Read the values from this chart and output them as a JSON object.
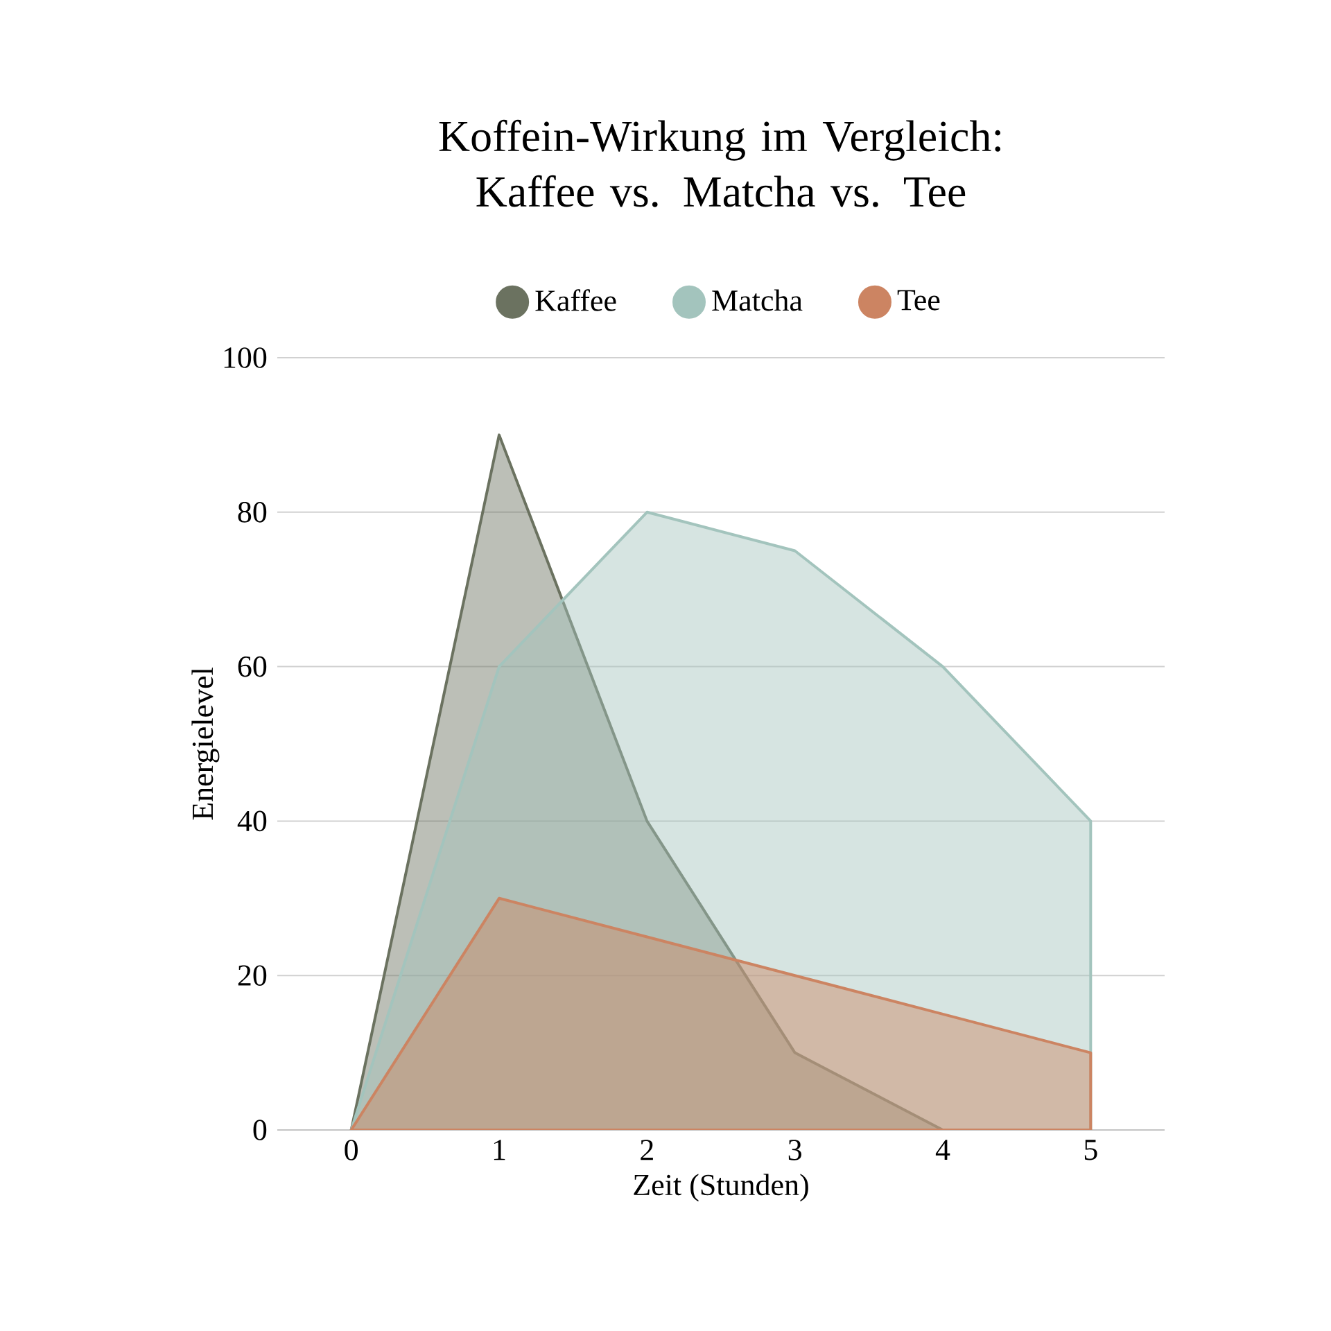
{
  "chart_data": {
    "type": "area",
    "title": "Koffein-Wirkung im Vergleich: Kaffee vs. Matcha vs. Tee",
    "xlabel": "Zeit (Stunden)",
    "ylabel": "Energielevel",
    "x": [
      0,
      1,
      2,
      3,
      4,
      5
    ],
    "series": [
      {
        "name": "Kaffee",
        "color": "#6b7260",
        "values": [
          0,
          90,
          40,
          10,
          0,
          0
        ]
      },
      {
        "name": "Matcha",
        "color": "#a3c4bd",
        "values": [
          0,
          60,
          80,
          75,
          60,
          40
        ]
      },
      {
        "name": "Tee",
        "color": "#cc8462",
        "values": [
          0,
          30,
          25,
          20,
          15,
          10
        ]
      }
    ],
    "xlim": [
      -0.5,
      5.5
    ],
    "xticks": [
      0,
      1,
      2,
      3,
      4,
      5
    ],
    "ylim": [
      0,
      100
    ],
    "yticks": [
      0,
      20,
      40,
      60,
      80,
      100
    ],
    "grid": "y",
    "legend": "top"
  }
}
